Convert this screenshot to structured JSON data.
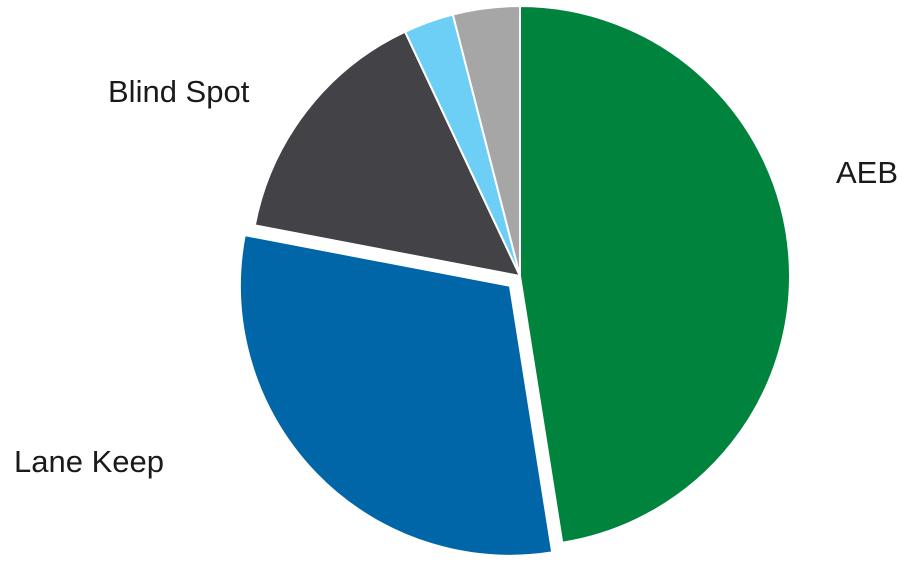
{
  "chart_data": {
    "type": "pie",
    "start_angle_deg": 0,
    "direction": "clockwise",
    "slices": [
      {
        "label": "AEB",
        "value": 47.5,
        "color": "#00843d",
        "exploded": false
      },
      {
        "label": "Lane Keep",
        "value": 30.5,
        "color": "#0066a8",
        "exploded": true
      },
      {
        "label": "Blind Spot",
        "value": 15.0,
        "color": "#434247",
        "exploded": false
      },
      {
        "label": "",
        "value": 3.0,
        "color": "#6dcff6",
        "exploded": false
      },
      {
        "label": "",
        "value": 4.0,
        "color": "#a6a6a6",
        "exploded": false
      }
    ]
  }
}
